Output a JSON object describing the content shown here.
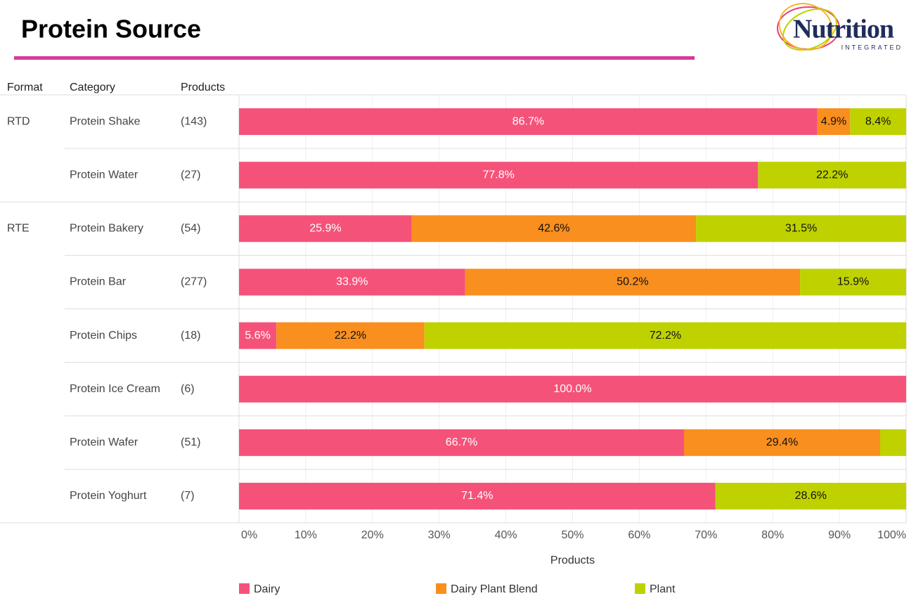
{
  "header": {
    "title": "Protein Source",
    "logo_name": "Nutrition",
    "logo_sub": "INTEGRATED"
  },
  "chart_data": {
    "type": "bar",
    "orientation": "horizontal",
    "stacked": true,
    "column_headers": [
      "Format",
      "Category",
      "Products"
    ],
    "formats": [
      "RTD",
      null,
      "RTE",
      null,
      null,
      null,
      null,
      null
    ],
    "categories": [
      "Protein Shake",
      "Protein Water",
      "Protein Bakery",
      "Protein Bar",
      "Protein Chips",
      "Protein Ice Cream",
      "Protein Wafer",
      "Protein Yoghurt"
    ],
    "products": [
      "(143)",
      "(27)",
      "(54)",
      "(277)",
      "(18)",
      "(6)",
      "(51)",
      "(7)"
    ],
    "series": [
      {
        "name": "Dairy",
        "color": "#f5527a",
        "label_color": "#ffffff",
        "values": [
          86.7,
          77.8,
          25.9,
          33.9,
          5.6,
          100.0,
          66.7,
          71.4
        ],
        "value_labels": [
          "86.7%",
          "77.8%",
          "25.9%",
          "33.9%",
          "5.6%",
          "100.0%",
          "66.7%",
          "71.4%"
        ]
      },
      {
        "name": "Dairy Plant Blend",
        "color": "#f98f1f",
        "label_color": "#111111",
        "values": [
          4.9,
          0,
          42.6,
          50.2,
          22.2,
          0,
          29.4,
          0
        ],
        "value_labels": [
          "4.9%",
          null,
          "42.6%",
          "50.2%",
          "22.2%",
          null,
          "29.4%",
          null
        ]
      },
      {
        "name": "Plant",
        "color": "#bfd200",
        "label_color": "#111111",
        "values": [
          8.4,
          22.2,
          31.5,
          15.9,
          72.2,
          0,
          3.9,
          28.6
        ],
        "value_labels": [
          "8.4%",
          "22.2%",
          "31.5%",
          "15.9%",
          "72.2%",
          null,
          null,
          "28.6%"
        ]
      }
    ],
    "xlabel": "Products",
    "xlim": [
      0,
      100
    ],
    "xticks": [
      {
        "value": 0,
        "label": "0%"
      },
      {
        "value": 10,
        "label": "10%"
      },
      {
        "value": 20,
        "label": "20%"
      },
      {
        "value": 30,
        "label": "30%"
      },
      {
        "value": 40,
        "label": "40%"
      },
      {
        "value": 50,
        "label": "50%"
      },
      {
        "value": 60,
        "label": "60%"
      },
      {
        "value": 70,
        "label": "70%"
      },
      {
        "value": 80,
        "label": "80%"
      },
      {
        "value": 90,
        "label": "90%"
      },
      {
        "value": 100,
        "label": "100%"
      }
    ],
    "grid": true
  }
}
